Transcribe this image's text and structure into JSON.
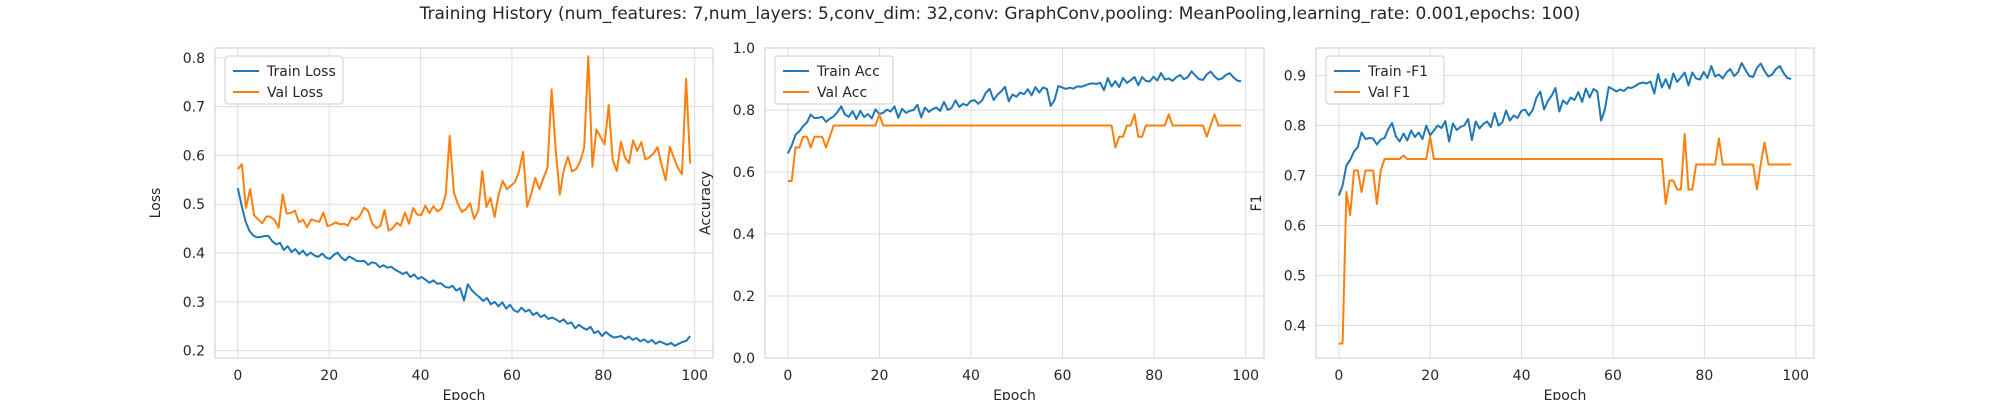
{
  "figure": {
    "title": "Training History (num_features: 7,num_layers: 5,conv_dim: 32,conv: GraphConv,pooling: MeanPooling,learning_rate: 0.001,epochs: 100)"
  },
  "chart_data": [
    {
      "type": "line",
      "xlabel": "Epoch",
      "ylabel": "Loss",
      "xlim": [
        -5,
        104
      ],
      "ylim": [
        0.185,
        0.82
      ],
      "xticks": [
        0,
        20,
        40,
        60,
        80,
        100
      ],
      "yticks": [
        0.2,
        0.3,
        0.4,
        0.5,
        0.6,
        0.7,
        0.8
      ],
      "ytick_labels": [
        "0.2",
        "0.3",
        "0.4",
        "0.5",
        "0.6",
        "0.7",
        "0.8"
      ],
      "grid": true,
      "legend": "upper left",
      "series": [
        {
          "name": "Train Loss",
          "color": "#1f77b4",
          "values": [
            0.533,
            0.497,
            0.465,
            0.446,
            0.436,
            0.432,
            0.433,
            0.435,
            0.435,
            0.424,
            0.418,
            0.421,
            0.406,
            0.414,
            0.402,
            0.408,
            0.398,
            0.405,
            0.395,
            0.401,
            0.395,
            0.392,
            0.399,
            0.391,
            0.388,
            0.396,
            0.401,
            0.391,
            0.385,
            0.393,
            0.389,
            0.384,
            0.383,
            0.384,
            0.376,
            0.381,
            0.379,
            0.371,
            0.375,
            0.37,
            0.372,
            0.366,
            0.362,
            0.357,
            0.361,
            0.351,
            0.356,
            0.347,
            0.351,
            0.345,
            0.339,
            0.344,
            0.337,
            0.338,
            0.331,
            0.329,
            0.333,
            0.323,
            0.328,
            0.303,
            0.336,
            0.324,
            0.316,
            0.31,
            0.302,
            0.308,
            0.295,
            0.3,
            0.291,
            0.299,
            0.286,
            0.294,
            0.283,
            0.279,
            0.288,
            0.28,
            0.284,
            0.273,
            0.278,
            0.269,
            0.273,
            0.265,
            0.268,
            0.264,
            0.259,
            0.264,
            0.255,
            0.258,
            0.246,
            0.253,
            0.247,
            0.243,
            0.249,
            0.236,
            0.24,
            0.23,
            0.238,
            0.232,
            0.227,
            0.228,
            0.23,
            0.224,
            0.229,
            0.222,
            0.226,
            0.219,
            0.223,
            0.217,
            0.222,
            0.214,
            0.219,
            0.216,
            0.212,
            0.216,
            0.21,
            0.214,
            0.218,
            0.22,
            0.23
          ]
        },
        {
          "name": "Val Loss",
          "color": "#ff7f0e",
          "values": [
            0.572,
            0.582,
            0.492,
            0.531,
            0.477,
            0.469,
            0.461,
            0.475,
            0.474,
            0.468,
            0.452,
            0.52,
            0.481,
            0.482,
            0.487,
            0.463,
            0.468,
            0.453,
            0.469,
            0.466,
            0.464,
            0.483,
            0.455,
            0.458,
            0.463,
            0.459,
            0.46,
            0.456,
            0.473,
            0.468,
            0.477,
            0.493,
            0.486,
            0.46,
            0.451,
            0.456,
            0.488,
            0.446,
            0.451,
            0.462,
            0.456,
            0.483,
            0.46,
            0.492,
            0.479,
            0.478,
            0.497,
            0.482,
            0.496,
            0.485,
            0.491,
            0.52,
            0.64,
            0.525,
            0.5,
            0.484,
            0.49,
            0.502,
            0.47,
            0.487,
            0.568,
            0.494,
            0.513,
            0.474,
            0.519,
            0.548,
            0.531,
            0.538,
            0.545,
            0.567,
            0.607,
            0.495,
            0.521,
            0.554,
            0.531,
            0.554,
            0.575,
            0.735,
            0.611,
            0.52,
            0.57,
            0.597,
            0.567,
            0.572,
            0.587,
            0.616,
            0.803,
            0.577,
            0.653,
            0.638,
            0.623,
            0.703,
            0.591,
            0.568,
            0.628,
            0.596,
            0.584,
            0.631,
            0.609,
            0.627,
            0.592,
            0.596,
            0.604,
            0.617,
            0.581,
            0.549,
            0.618,
            0.595,
            0.574,
            0.562,
            0.757,
            0.583
          ]
        }
      ]
    },
    {
      "type": "line",
      "xlabel": "Epoch",
      "ylabel": "Accuracy",
      "xlim": [
        -5,
        104
      ],
      "ylim": [
        0.0,
        1.0
      ],
      "xticks": [
        0,
        20,
        40,
        60,
        80,
        100
      ],
      "yticks": [
        0.0,
        0.2,
        0.4,
        0.6,
        0.8,
        1.0
      ],
      "ytick_labels": [
        "0.0",
        "0.2",
        "0.4",
        "0.6",
        "0.8",
        "1.0"
      ],
      "grid": true,
      "legend": "upper left",
      "series": [
        {
          "name": "Train Acc",
          "color": "#1f77b4",
          "values": [
            0.66,
            0.685,
            0.72,
            0.731,
            0.748,
            0.76,
            0.785,
            0.774,
            0.775,
            0.778,
            0.762,
            0.772,
            0.779,
            0.793,
            0.812,
            0.785,
            0.778,
            0.796,
            0.771,
            0.797,
            0.777,
            0.787,
            0.773,
            0.802,
            0.787,
            0.791,
            0.801,
            0.795,
            0.812,
            0.775,
            0.804,
            0.791,
            0.797,
            0.8,
            0.817,
            0.776,
            0.808,
            0.794,
            0.803,
            0.808,
            0.797,
            0.826,
            0.8,
            0.807,
            0.831,
            0.81,
            0.82,
            0.815,
            0.829,
            0.832,
            0.82,
            0.831,
            0.856,
            0.868,
            0.832,
            0.849,
            0.86,
            0.875,
            0.828,
            0.85,
            0.843,
            0.856,
            0.851,
            0.867,
            0.847,
            0.874,
            0.856,
            0.873,
            0.868,
            0.813,
            0.832,
            0.877,
            0.873,
            0.868,
            0.872,
            0.869,
            0.876,
            0.875,
            0.879,
            0.884,
            0.886,
            0.884,
            0.888,
            0.864,
            0.903,
            0.876,
            0.893,
            0.874,
            0.904,
            0.887,
            0.896,
            0.906,
            0.88,
            0.906,
            0.894,
            0.892,
            0.907,
            0.895,
            0.919,
            0.898,
            0.902,
            0.894,
            0.906,
            0.913,
            0.899,
            0.906,
            0.925,
            0.911,
            0.899,
            0.897,
            0.915,
            0.924,
            0.909,
            0.898,
            0.902,
            0.913,
            0.919,
            0.905,
            0.895,
            0.893
          ]
        },
        {
          "name": "Val Acc",
          "color": "#ff7f0e",
          "values": [
            0.571,
            0.571,
            0.679,
            0.679,
            0.714,
            0.714,
            0.679,
            0.714,
            0.714,
            0.714,
            0.679,
            0.714,
            0.75,
            0.75,
            0.75,
            0.75,
            0.75,
            0.75,
            0.75,
            0.75,
            0.75,
            0.75,
            0.75,
            0.75,
            0.786,
            0.75,
            0.75,
            0.75,
            0.75,
            0.75,
            0.75,
            0.75,
            0.75,
            0.75,
            0.75,
            0.75,
            0.75,
            0.75,
            0.75,
            0.75,
            0.75,
            0.75,
            0.75,
            0.75,
            0.75,
            0.75,
            0.75,
            0.75,
            0.75,
            0.75,
            0.75,
            0.75,
            0.75,
            0.75,
            0.75,
            0.75,
            0.75,
            0.75,
            0.75,
            0.75,
            0.75,
            0.75,
            0.75,
            0.75,
            0.75,
            0.75,
            0.75,
            0.75,
            0.75,
            0.75,
            0.75,
            0.75,
            0.75,
            0.75,
            0.75,
            0.75,
            0.75,
            0.75,
            0.75,
            0.75,
            0.75,
            0.75,
            0.75,
            0.75,
            0.75,
            0.75,
            0.679,
            0.714,
            0.714,
            0.75,
            0.75,
            0.786,
            0.714,
            0.714,
            0.75,
            0.75,
            0.75,
            0.75,
            0.75,
            0.75,
            0.786,
            0.75,
            0.75,
            0.75,
            0.75,
            0.75,
            0.75,
            0.75,
            0.75,
            0.75,
            0.714,
            0.75,
            0.786,
            0.75,
            0.75,
            0.75,
            0.75,
            0.75,
            0.75,
            0.75
          ]
        }
      ]
    },
    {
      "type": "line",
      "xlabel": "Epoch",
      "ylabel": "F1",
      "xlim": [
        -5,
        104
      ],
      "ylim": [
        0.335,
        0.955
      ],
      "xticks": [
        0,
        20,
        40,
        60,
        80,
        100
      ],
      "yticks": [
        0.4,
        0.5,
        0.6,
        0.7,
        0.8,
        0.9
      ],
      "ytick_labels": [
        "0.4",
        "0.5",
        "0.6",
        "0.7",
        "0.8",
        "0.9"
      ],
      "grid": true,
      "legend": "upper left",
      "series": [
        {
          "name": "Train -F1",
          "color": "#1f77b4",
          "values": [
            0.66,
            0.68,
            0.72,
            0.731,
            0.748,
            0.757,
            0.786,
            0.773,
            0.775,
            0.774,
            0.762,
            0.772,
            0.775,
            0.793,
            0.805,
            0.778,
            0.768,
            0.784,
            0.77,
            0.79,
            0.777,
            0.786,
            0.773,
            0.8,
            0.78,
            0.79,
            0.8,
            0.795,
            0.809,
            0.768,
            0.804,
            0.791,
            0.797,
            0.8,
            0.813,
            0.771,
            0.808,
            0.794,
            0.803,
            0.808,
            0.797,
            0.825,
            0.8,
            0.806,
            0.83,
            0.81,
            0.82,
            0.815,
            0.829,
            0.832,
            0.82,
            0.831,
            0.856,
            0.868,
            0.832,
            0.849,
            0.86,
            0.875,
            0.828,
            0.85,
            0.843,
            0.856,
            0.851,
            0.867,
            0.847,
            0.874,
            0.856,
            0.873,
            0.868,
            0.81,
            0.832,
            0.877,
            0.873,
            0.868,
            0.872,
            0.869,
            0.876,
            0.875,
            0.879,
            0.884,
            0.886,
            0.884,
            0.888,
            0.864,
            0.903,
            0.876,
            0.893,
            0.874,
            0.904,
            0.887,
            0.896,
            0.906,
            0.88,
            0.906,
            0.894,
            0.892,
            0.907,
            0.895,
            0.919,
            0.898,
            0.902,
            0.894,
            0.906,
            0.913,
            0.899,
            0.906,
            0.925,
            0.911,
            0.899,
            0.897,
            0.915,
            0.924,
            0.909,
            0.898,
            0.902,
            0.913,
            0.919,
            0.905,
            0.895,
            0.893
          ]
        },
        {
          "name": "Val F1",
          "color": "#ff7f0e",
          "values": [
            0.364,
            0.364,
            0.667,
            0.621,
            0.71,
            0.71,
            0.667,
            0.71,
            0.71,
            0.71,
            0.643,
            0.71,
            0.733,
            0.733,
            0.733,
            0.733,
            0.733,
            0.74,
            0.733,
            0.733,
            0.733,
            0.733,
            0.733,
            0.733,
            0.778,
            0.733,
            0.733,
            0.733,
            0.733,
            0.733,
            0.733,
            0.733,
            0.733,
            0.733,
            0.733,
            0.733,
            0.733,
            0.733,
            0.733,
            0.733,
            0.733,
            0.733,
            0.733,
            0.733,
            0.733,
            0.733,
            0.733,
            0.733,
            0.733,
            0.733,
            0.733,
            0.733,
            0.733,
            0.733,
            0.733,
            0.733,
            0.733,
            0.733,
            0.733,
            0.733,
            0.733,
            0.733,
            0.733,
            0.733,
            0.733,
            0.733,
            0.733,
            0.733,
            0.733,
            0.733,
            0.733,
            0.733,
            0.733,
            0.733,
            0.733,
            0.733,
            0.733,
            0.733,
            0.733,
            0.733,
            0.733,
            0.733,
            0.733,
            0.733,
            0.733,
            0.733,
            0.643,
            0.69,
            0.69,
            0.672,
            0.672,
            0.783,
            0.672,
            0.672,
            0.722,
            0.722,
            0.722,
            0.722,
            0.722,
            0.722,
            0.774,
            0.722,
            0.722,
            0.722,
            0.722,
            0.722,
            0.722,
            0.722,
            0.722,
            0.722,
            0.672,
            0.722,
            0.766,
            0.722,
            0.722,
            0.722,
            0.722,
            0.722,
            0.722,
            0.722
          ]
        }
      ]
    }
  ]
}
